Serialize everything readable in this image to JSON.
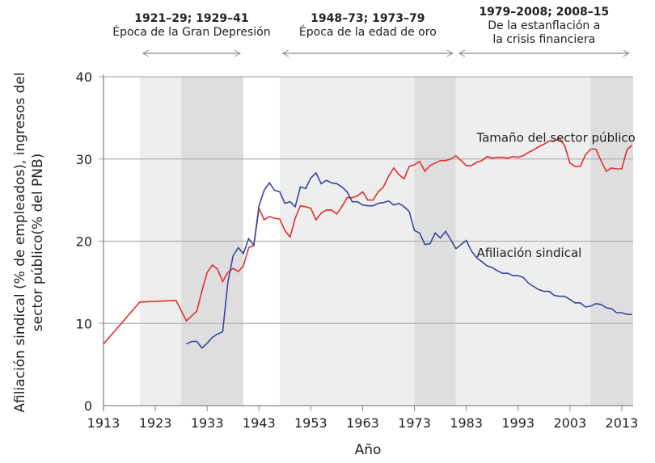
{
  "chart_data": {
    "type": "line",
    "xlabel": "Año",
    "ylabel": [
      "Afiliación sindical (% de empleados), ingresos del",
      "sector público(% del PNB)"
    ],
    "xlim": [
      1913,
      2015.2
    ],
    "ylim": [
      0,
      40
    ],
    "xticks": [
      1913,
      1923,
      1933,
      1943,
      1953,
      1963,
      1973,
      1983,
      1993,
      2003,
      2013
    ],
    "yticks": [
      0,
      10,
      20,
      30,
      40
    ],
    "grid": "horizontal",
    "shaded_periods": [
      {
        "start": 1920,
        "end": 1928,
        "tone": "light"
      },
      {
        "start": 1928,
        "end": 1940,
        "tone": "dark"
      },
      {
        "start": 1947,
        "end": 1973,
        "tone": "light"
      },
      {
        "start": 1973,
        "end": 1981,
        "tone": "dark"
      },
      {
        "start": 1981,
        "end": 2007,
        "tone": "light"
      },
      {
        "start": 2007,
        "end": 2015.2,
        "tone": "dark"
      }
    ],
    "annotations": [
      {
        "bold": "1921–29; 1929–41",
        "lines": [
          "Época de la Gran Depresión"
        ],
        "from": 1920,
        "to": 1940
      },
      {
        "bold": "1948–73; 1973–79",
        "lines": [
          "Época de la edad de oro"
        ],
        "from": 1947,
        "to": 1981
      },
      {
        "bold": "1979–2008; 2008–15",
        "lines": [
          "De la estanflación a",
          "la crisis financiera"
        ],
        "from": 1981,
        "to": 2015
      }
    ],
    "colors": {
      "public": "#e0302a",
      "union": "#3a46a0",
      "light": "#eeeeee",
      "dark": "#dedede",
      "grid": "#b0b0b0"
    },
    "series": [
      {
        "name": "Tamaño del sector público",
        "label_at": [
          1985,
          32.1
        ],
        "x": [
          1913,
          1920,
          1927,
          1929,
          1931,
          1932,
          1933,
          1934,
          1935,
          1936,
          1937,
          1938,
          1939,
          1940,
          1941,
          1942,
          1943,
          1944,
          1945,
          1946,
          1947,
          1948,
          1949,
          1950,
          1951,
          1952,
          1953,
          1954,
          1955,
          1956,
          1957,
          1958,
          1959,
          1960,
          1961,
          1962,
          1963,
          1964,
          1965,
          1966,
          1967,
          1968,
          1969,
          1970,
          1971,
          1972,
          1973,
          1974,
          1975,
          1976,
          1977,
          1978,
          1979,
          1980,
          1981,
          1982,
          1983,
          1984,
          1985,
          1986,
          1987,
          1988,
          1989,
          1990,
          1991,
          1992,
          1993,
          1994,
          1995,
          1996,
          1997,
          1998,
          1999,
          2000,
          2001,
          2002,
          2003,
          2004,
          2005,
          2006,
          2007,
          2008,
          2009,
          2010,
          2011,
          2012,
          2013,
          2014,
          2015
        ],
        "y": [
          7.5,
          12.6,
          12.8,
          10.3,
          11.5,
          14,
          16.2,
          17.1,
          16.6,
          15.1,
          16.2,
          16.7,
          16.3,
          17,
          19.2,
          19.5,
          24,
          22.6,
          23,
          22.8,
          22.7,
          21.3,
          20.5,
          22.8,
          24.3,
          24.2,
          24,
          22.6,
          23.4,
          23.8,
          23.8,
          23.3,
          24.2,
          25.3,
          25.3,
          25.5,
          26,
          25,
          25,
          26,
          26.6,
          27.9,
          28.9,
          28.1,
          27.6,
          29.1,
          29.3,
          29.7,
          28.5,
          29.2,
          29.5,
          29.8,
          29.8,
          30,
          30.4,
          29.8,
          29.2,
          29.2,
          29.6,
          29.8,
          30.3,
          30.1,
          30.2,
          30.2,
          30.1,
          30.3,
          30.2,
          30.4,
          30.8,
          31.1,
          31.5,
          31.8,
          32.2,
          32.2,
          32.5,
          31.6,
          29.5,
          29.1,
          29.1,
          30.5,
          31.2,
          31.2,
          29.8,
          28.5,
          28.9,
          28.8,
          28.8,
          31.1,
          31.7
        ]
      },
      {
        "name": "Afiliación sindical",
        "label_at": [
          1985,
          18.1
        ],
        "x": [
          1929,
          1930,
          1931,
          1932,
          1933,
          1934,
          1935,
          1936,
          1937,
          1938,
          1939,
          1940,
          1941,
          1942,
          1943,
          1944,
          1945,
          1946,
          1947,
          1948,
          1949,
          1950,
          1951,
          1952,
          1953,
          1954,
          1955,
          1956,
          1957,
          1958,
          1959,
          1960,
          1961,
          1962,
          1963,
          1964,
          1965,
          1966,
          1967,
          1968,
          1969,
          1970,
          1971,
          1972,
          1973,
          1974,
          1975,
          1976,
          1977,
          1978,
          1979,
          1980,
          1981,
          1982,
          1983,
          1984,
          1985,
          1986,
          1987,
          1988,
          1989,
          1990,
          1991,
          1992,
          1993,
          1994,
          1995,
          1996,
          1997,
          1998,
          1999,
          2000,
          2001,
          2002,
          2003,
          2004,
          2005,
          2006,
          2007,
          2008,
          2009,
          2010,
          2011,
          2012,
          2013,
          2014,
          2015
        ],
        "y": [
          7.5,
          7.8,
          7.8,
          7.0,
          7.6,
          8.3,
          8.7,
          9.0,
          15,
          18.2,
          19.2,
          18.5,
          20.3,
          19.5,
          24.3,
          26.2,
          27.1,
          26.2,
          26,
          24.6,
          24.8,
          24.2,
          26.6,
          26.4,
          27.7,
          28.3,
          27,
          27.4,
          27.1,
          27,
          26.6,
          26,
          24.8,
          24.8,
          24.4,
          24.3,
          24.3,
          24.6,
          24.7,
          24.9,
          24.4,
          24.6,
          24.2,
          23.6,
          21.3,
          21,
          19.6,
          19.7,
          21,
          20.4,
          21.2,
          20.2,
          19.1,
          19.6,
          20.1,
          18.8,
          18,
          17.5,
          17,
          16.8,
          16.4,
          16.1,
          16.1,
          15.8,
          15.8,
          15.6,
          14.9,
          14.5,
          14.1,
          13.9,
          13.9,
          13.4,
          13.3,
          13.3,
          12.9,
          12.5,
          12.5,
          12,
          12.1,
          12.4,
          12.3,
          11.9,
          11.8,
          11.3,
          11.3,
          11.1,
          11.1
        ]
      }
    ]
  }
}
